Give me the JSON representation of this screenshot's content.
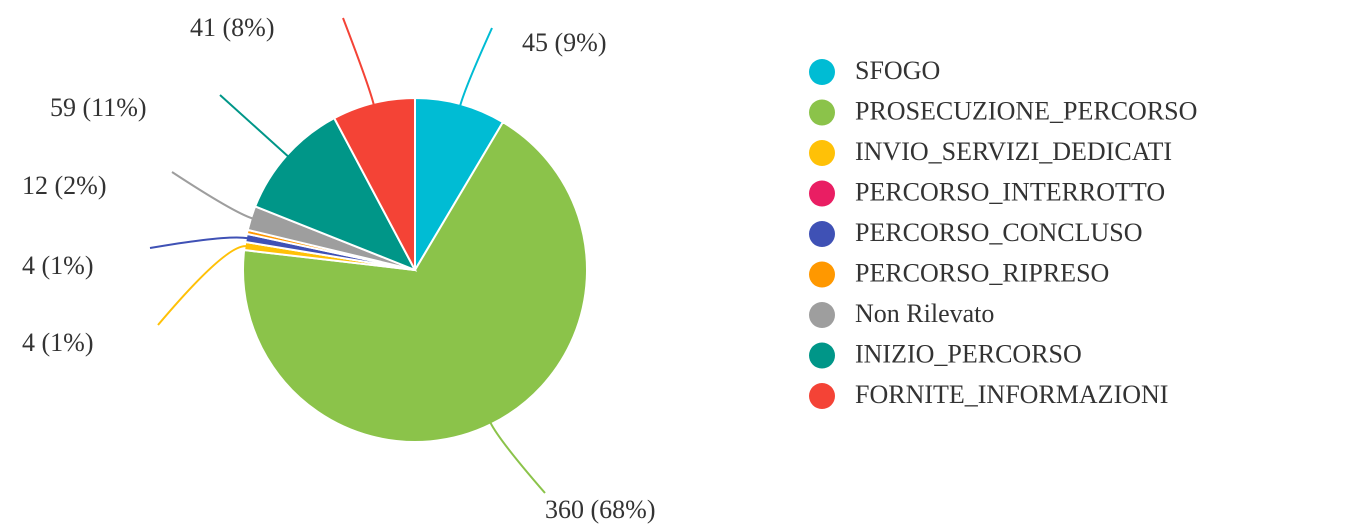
{
  "chart_data": {
    "type": "pie",
    "categories": [
      "SFOGO",
      "PROSECUZIONE_PERCORSO",
      "INVIO_SERVIZI_DEDICATI",
      "PERCORSO_INTERROTTO",
      "PERCORSO_CONCLUSO",
      "PERCORSO_RIPRESO",
      "Non Rilevato",
      "INIZIO_PERCORSO",
      "FORNITE_INFORMAZIONI"
    ],
    "values": [
      45,
      360,
      4,
      0,
      4,
      2,
      12,
      59,
      41
    ],
    "value_labels": [
      "45 (9%)",
      "360 (68%)",
      "4 (1%)",
      null,
      "4 (1%)",
      null,
      "12 (2%)",
      "59 (11%)",
      "41 (8%)"
    ],
    "colors": [
      "#00bcd4",
      "#8bc34a",
      "#ffc107",
      "#e91e63",
      "#3f51b5",
      "#ff9800",
      "#9e9e9e",
      "#009688",
      "#f44336"
    ],
    "legend": "right"
  }
}
